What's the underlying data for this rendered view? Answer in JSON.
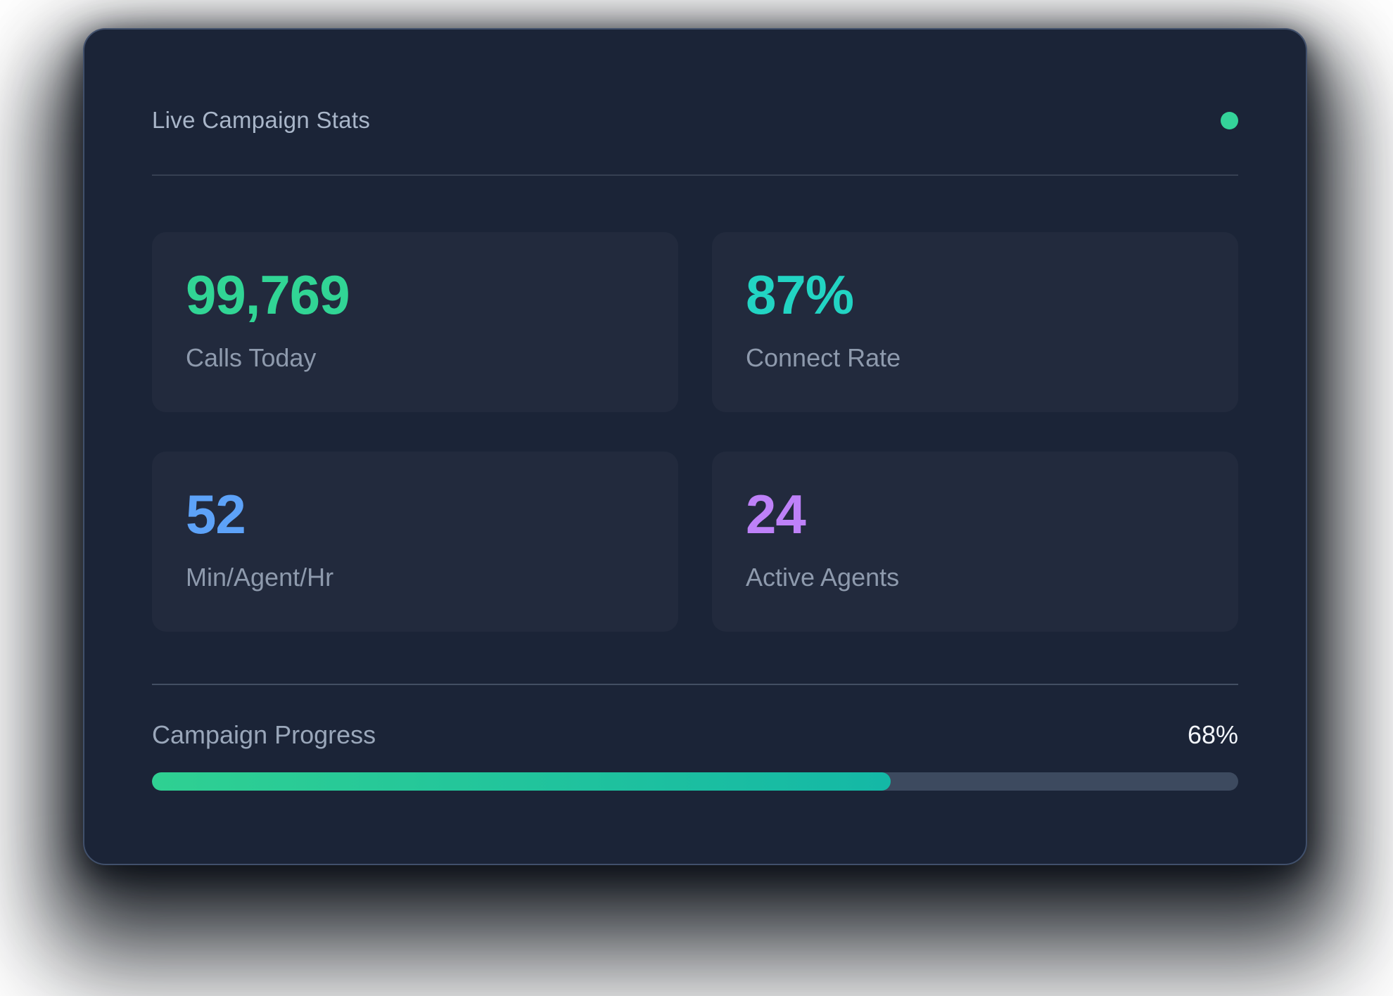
{
  "card": {
    "title": "Live Campaign Stats",
    "status_dot_color": "#34d399"
  },
  "stats": [
    {
      "value": "99,769",
      "label": "Calls Today",
      "color": "#31d595"
    },
    {
      "value": "87%",
      "label": "Connect Rate",
      "color": "#22d4c3"
    },
    {
      "value": "52",
      "label": "Min/Agent/Hr",
      "color": "#5da2f8"
    },
    {
      "value": "24",
      "label": "Active Agents",
      "color": "#be81f8"
    }
  ],
  "progress": {
    "label": "Campaign Progress",
    "value_text": "68%",
    "percent": 68,
    "width_css": "68%",
    "fill_css": "linear-gradient(90deg, #2fd092 0%, #14b8a6 100%)",
    "track_color": "#3d4a5f"
  }
}
